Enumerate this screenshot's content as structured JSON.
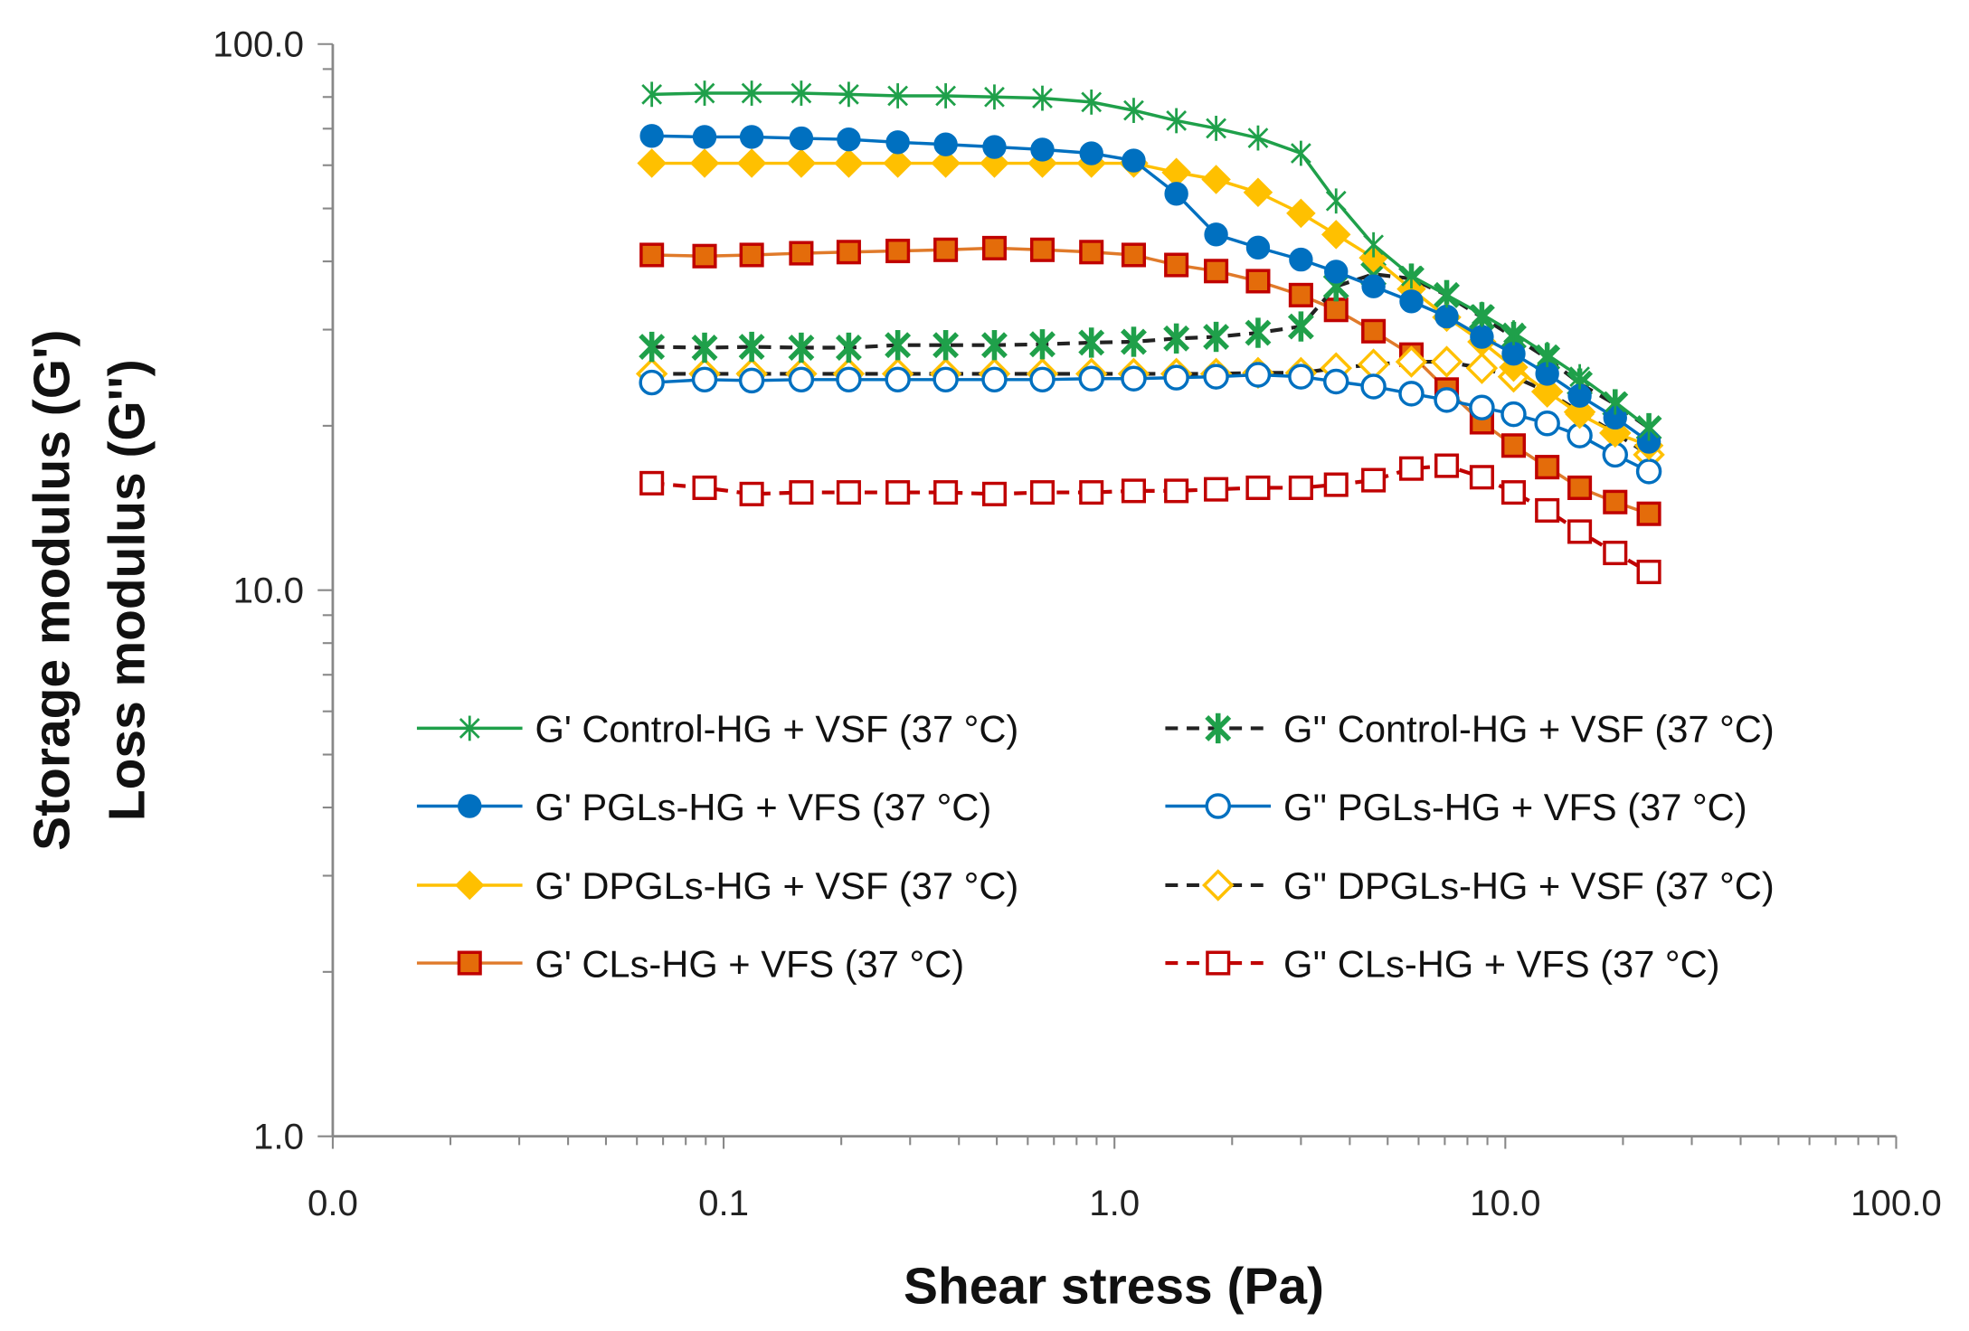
{
  "chart_data": {
    "type": "line",
    "title": "",
    "xlabel": "Shear stress (Pa)",
    "ylabel": [
      "Storage modulus (G')",
      "Loss modulus (G'')"
    ],
    "xscale": "log",
    "yscale": "log",
    "xlim": [
      0.01,
      100
    ],
    "ylim": [
      1,
      100
    ],
    "x_ticks": [
      {
        "value": 0.01,
        "label": "0.0"
      },
      {
        "value": 0.1,
        "label": "0.1"
      },
      {
        "value": 1,
        "label": "1.0"
      },
      {
        "value": 10,
        "label": "10.0"
      },
      {
        "value": 100,
        "label": "100.0"
      }
    ],
    "y_ticks": [
      {
        "value": 1,
        "label": "1.0"
      },
      {
        "value": 10,
        "label": "10.0"
      },
      {
        "value": 100,
        "label": "100.0"
      }
    ],
    "grid": false,
    "legend_position": "center-bottom",
    "x": [
      0.0655,
      0.0894,
      0.118,
      0.158,
      0.209,
      0.279,
      0.37,
      0.493,
      0.654,
      0.873,
      1.12,
      1.44,
      1.82,
      2.33,
      3.0,
      3.69,
      4.6,
      5.75,
      7.08,
      8.71,
      10.5,
      12.8,
      15.5,
      19.1,
      23.3
    ],
    "series": [
      {
        "name": "G' Control-HG + VSF (37 °C)",
        "color": "#1fa04a",
        "line": "solid",
        "marker": "asterisk",
        "filled": true,
        "values": [
          80.9,
          81.3,
          81.3,
          81.3,
          80.9,
          80.4,
          80.4,
          80.0,
          79.6,
          78.3,
          75.6,
          72.4,
          70.1,
          67.3,
          63.1,
          51.6,
          42.9,
          37.6,
          34.7,
          32.0,
          29.6,
          27.0,
          24.6,
          22.1,
          19.8
        ]
      },
      {
        "name": "G'' Control-HG + VSF (37 °C)",
        "color": "#1fa04a",
        "line_color": "#222222",
        "line": "dashed",
        "marker": "asterisk-bold",
        "filled": true,
        "values": [
          27.9,
          27.8,
          27.9,
          27.8,
          27.8,
          28.1,
          28.1,
          28.1,
          28.2,
          28.4,
          28.5,
          28.9,
          29.1,
          29.6,
          30.4,
          36.0,
          37.9,
          37.2,
          34.7,
          31.6,
          29.1,
          26.6,
          23.9,
          21.9,
          19.8
        ]
      },
      {
        "name": "G' PGLs-HG + VFS (37 °C)",
        "color": "#0070c0",
        "line": "solid",
        "marker": "circle",
        "filled": true,
        "values": [
          67.9,
          67.6,
          67.6,
          67.2,
          66.9,
          66.1,
          65.5,
          64.8,
          64.1,
          63.1,
          61.2,
          53.2,
          44.8,
          42.4,
          40.3,
          38.3,
          36.0,
          33.8,
          31.7,
          29.1,
          27.1,
          24.9,
          22.7,
          20.7,
          18.7
        ]
      },
      {
        "name": "G'' PGLs-HG + VFS (37 °C)",
        "color": "#0070c0",
        "line": "solid",
        "marker": "circle",
        "filled": false,
        "values": [
          24.0,
          24.3,
          24.2,
          24.3,
          24.3,
          24.3,
          24.3,
          24.3,
          24.3,
          24.4,
          24.4,
          24.5,
          24.6,
          24.8,
          24.6,
          24.1,
          23.6,
          22.9,
          22.3,
          21.6,
          21.0,
          20.2,
          19.2,
          17.7,
          16.5
        ]
      },
      {
        "name": "G' DPGLs-HG + VSF (37 °C)",
        "color": "#ffc000",
        "line": "solid",
        "marker": "diamond",
        "filled": true,
        "values": [
          60.5,
          60.5,
          60.5,
          60.5,
          60.5,
          60.5,
          60.5,
          60.5,
          60.5,
          60.5,
          60.5,
          58.2,
          56.5,
          53.5,
          49.0,
          44.8,
          40.6,
          35.6,
          31.6,
          28.5,
          25.6,
          23.1,
          21.0,
          19.4,
          18.4
        ]
      },
      {
        "name": "G'' DPGLs-HG + VSF (37 °C)",
        "color": "#ffc000",
        "line_color": "#222222",
        "line": "dashed",
        "marker": "diamond",
        "filled": false,
        "values": [
          24.9,
          24.9,
          24.9,
          24.9,
          24.9,
          24.9,
          24.9,
          24.9,
          24.9,
          24.9,
          24.9,
          24.9,
          24.9,
          25.0,
          25.0,
          25.5,
          25.9,
          26.2,
          26.2,
          25.5,
          24.6,
          23.1,
          21.2,
          19.4,
          17.7
        ]
      },
      {
        "name": "G' CLs-HG + VFS (37 °C)",
        "color": "#e46c0a",
        "edge": "#c00000",
        "line_color": "#e07a2a",
        "line": "solid",
        "marker": "square",
        "filled": true,
        "values": [
          41.1,
          40.9,
          41.1,
          41.4,
          41.6,
          41.8,
          42.0,
          42.3,
          42.0,
          41.6,
          41.1,
          39.4,
          38.4,
          36.8,
          34.7,
          32.6,
          29.8,
          27.0,
          23.3,
          20.3,
          18.4,
          16.8,
          15.4,
          14.5,
          13.8
        ]
      },
      {
        "name": "G'' CLs-HG + VFS (37 °C)",
        "color": "#c00000",
        "line_color": "#c00000",
        "line": "dashed",
        "marker": "square",
        "filled": false,
        "values": [
          15.7,
          15.4,
          15.0,
          15.1,
          15.1,
          15.1,
          15.1,
          15.0,
          15.1,
          15.1,
          15.2,
          15.2,
          15.3,
          15.4,
          15.4,
          15.6,
          15.9,
          16.7,
          16.9,
          16.1,
          15.1,
          14.0,
          12.8,
          11.7,
          10.8
        ]
      }
    ]
  },
  "legend_order": [
    0,
    1,
    2,
    3,
    4,
    5,
    6,
    7
  ]
}
